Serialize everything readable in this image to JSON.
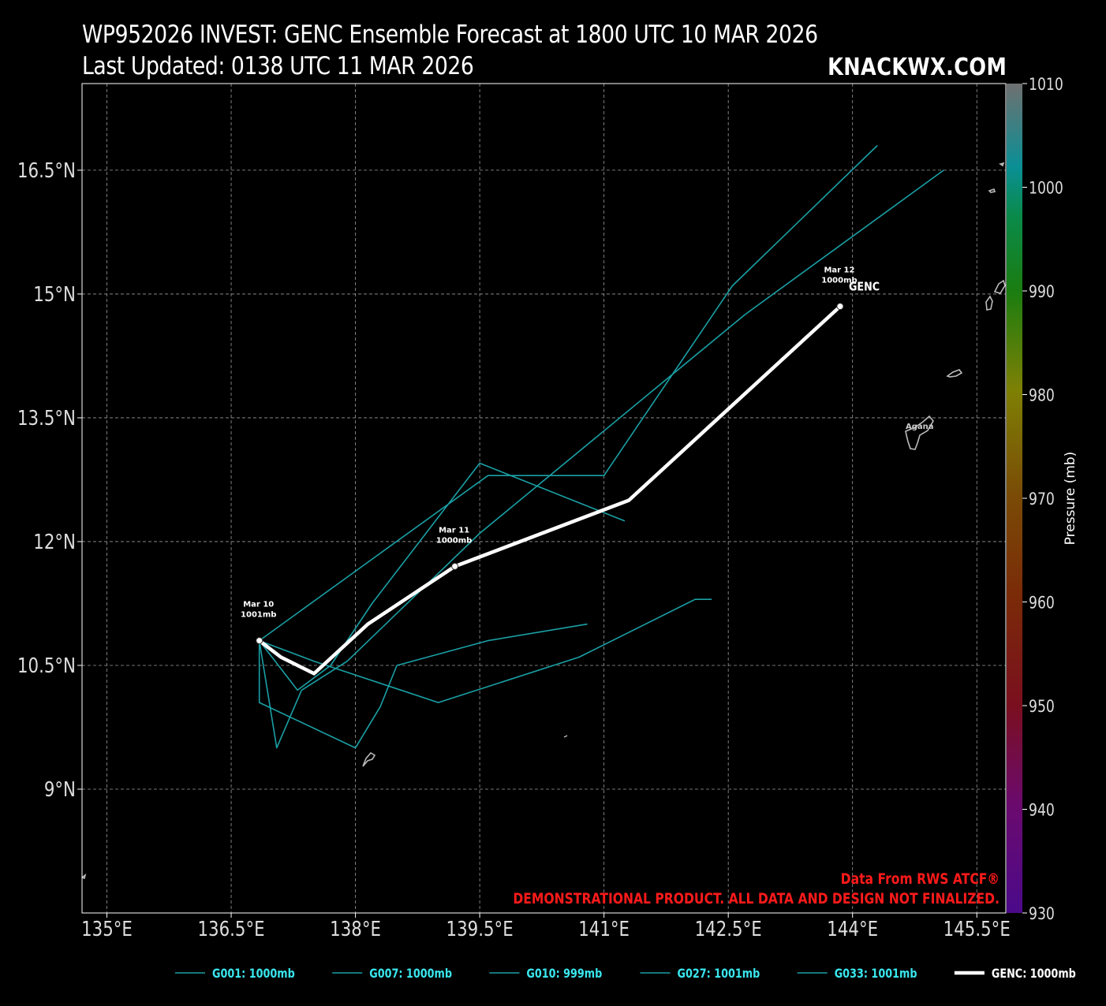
{
  "header": {
    "title_line1": "WP952026 INVEST: GENC Ensemble Forecast at 1800 UTC 10 MAR 2026",
    "title_line2": "Last Updated: 0138 UTC 11 MAR 2026",
    "brand": "KNACKWX.COM"
  },
  "map": {
    "lon_range": [
      134.7,
      145.85
    ],
    "lat_range": [
      7.5,
      17.55
    ],
    "lon_ticks": [
      {
        "value": 135.0,
        "label": "135°E"
      },
      {
        "value": 136.5,
        "label": "136.5°E"
      },
      {
        "value": 138.0,
        "label": "138°E"
      },
      {
        "value": 139.5,
        "label": "139.5°E"
      },
      {
        "value": 141.0,
        "label": "141°E"
      },
      {
        "value": 142.5,
        "label": "142.5°E"
      },
      {
        "value": 144.0,
        "label": "144°E"
      },
      {
        "value": 145.5,
        "label": "145.5°E"
      }
    ],
    "lat_ticks": [
      {
        "value": 16.5,
        "label": "16.5°N"
      },
      {
        "value": 15.0,
        "label": "15°N"
      },
      {
        "value": 13.5,
        "label": "13.5°N"
      },
      {
        "value": 12.0,
        "label": "12°N"
      },
      {
        "value": 10.5,
        "label": "10.5°N"
      },
      {
        "value": 9.0,
        "label": "9°N"
      }
    ],
    "grid": true,
    "place_label": "Agana",
    "notice_line1": "Data From RWS ATCF®",
    "notice_line2": "DEMONSTRATIONAL PRODUCT. ALL DATA AND DESIGN NOT FINALIZED.",
    "notice_color": "#ff1a1a",
    "ensemble_color": "#1aa0a5",
    "genc_color": "#ffffff",
    "genc_name": "GENC"
  },
  "tracks": [
    {
      "name": "G001",
      "points": [
        [
          136.84,
          10.8
        ],
        [
          138.15,
          11.75
        ],
        [
          139.6,
          12.8
        ],
        [
          141.0,
          12.8
        ],
        [
          142.55,
          15.1
        ],
        [
          144.3,
          16.8
        ]
      ]
    },
    {
      "name": "G007",
      "points": [
        [
          136.84,
          10.8
        ],
        [
          137.3,
          10.2
        ],
        [
          137.7,
          10.5
        ],
        [
          138.2,
          11.25
        ],
        [
          139.5,
          12.95
        ],
        [
          141.25,
          12.25
        ]
      ]
    },
    {
      "name": "G010",
      "points": [
        [
          136.84,
          10.8
        ],
        [
          137.5,
          10.55
        ],
        [
          139.0,
          10.05
        ],
        [
          140.7,
          10.6
        ],
        [
          142.1,
          11.3
        ],
        [
          142.3,
          11.3
        ]
      ]
    },
    {
      "name": "G027",
      "points": [
        [
          136.84,
          10.8
        ],
        [
          137.05,
          9.5
        ],
        [
          137.35,
          10.2
        ],
        [
          137.9,
          10.55
        ],
        [
          139.5,
          12.1
        ],
        [
          142.7,
          14.75
        ],
        [
          145.1,
          16.5
        ]
      ]
    },
    {
      "name": "G033",
      "points": [
        [
          136.84,
          10.8
        ],
        [
          136.84,
          10.05
        ],
        [
          138.0,
          9.5
        ],
        [
          138.3,
          10.0
        ],
        [
          138.5,
          10.5
        ],
        [
          139.6,
          10.8
        ],
        [
          140.8,
          11.0
        ]
      ]
    }
  ],
  "genc_track": [
    [
      136.84,
      10.8
    ],
    [
      137.1,
      10.6
    ],
    [
      137.5,
      10.4
    ],
    [
      138.15,
      11.0
    ],
    [
      139.2,
      11.7
    ],
    [
      141.3,
      12.5
    ],
    [
      143.85,
      14.85
    ]
  ],
  "markers": [
    {
      "date": "Mar 10",
      "pressure": "1001mb",
      "lon": 136.84,
      "lat": 10.8
    },
    {
      "date": "Mar 11",
      "pressure": "1000mb",
      "lon": 139.2,
      "lat": 11.7
    },
    {
      "date": "Mar 12",
      "pressure": "1000mb",
      "lon": 143.85,
      "lat": 14.85
    }
  ],
  "colorbar": {
    "label": "Pressure (mb)",
    "min": 930,
    "max": 1010,
    "ticks": [
      1010,
      1000,
      990,
      980,
      970,
      960,
      950,
      940,
      930
    ]
  },
  "legend": [
    {
      "label": "G001: 1000mb",
      "color": "#1aa0a5",
      "style": "thin",
      "text_color": "#39e6ee"
    },
    {
      "label": "G007: 1000mb",
      "color": "#1aa0a5",
      "style": "thin",
      "text_color": "#39e6ee"
    },
    {
      "label": "G010: 999mb",
      "color": "#1aa0a5",
      "style": "thin",
      "text_color": "#39e6ee"
    },
    {
      "label": "G027: 1001mb",
      "color": "#1aa0a5",
      "style": "thin",
      "text_color": "#39e6ee"
    },
    {
      "label": "G033: 1001mb",
      "color": "#1aa0a5",
      "style": "thin",
      "text_color": "#39e6ee"
    },
    {
      "label": "GENC: 1000mb",
      "color": "#ffffff",
      "style": "thick",
      "text_color": "#ffffff"
    }
  ]
}
